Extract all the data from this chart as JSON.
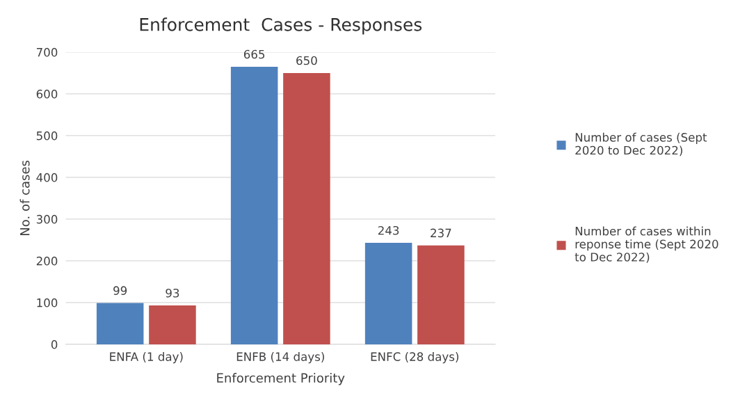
{
  "chart_data": {
    "type": "bar",
    "title": "Enforcement  Cases - Responses",
    "xlabel": "Enforcement Priority",
    "ylabel": "No. of cases",
    "categories": [
      "ENFA (1 day)",
      "ENFB (14 days)",
      "ENFC (28 days)"
    ],
    "series": [
      {
        "name": "Number of cases (Sept\n2020 to Dec 2022)",
        "color": "#4f81bd",
        "values": [
          99,
          665,
          243
        ]
      },
      {
        "name": "Number of cases within\nreponse time (Sept 2020\nto Dec 2022)",
        "color": "#c0504d",
        "values": [
          93,
          650,
          237
        ]
      }
    ],
    "ylim": [
      0,
      700
    ],
    "yticks": [
      0,
      100,
      200,
      300,
      400,
      500,
      600,
      700
    ],
    "grid": "y",
    "legend": "right",
    "data_labels": true
  }
}
